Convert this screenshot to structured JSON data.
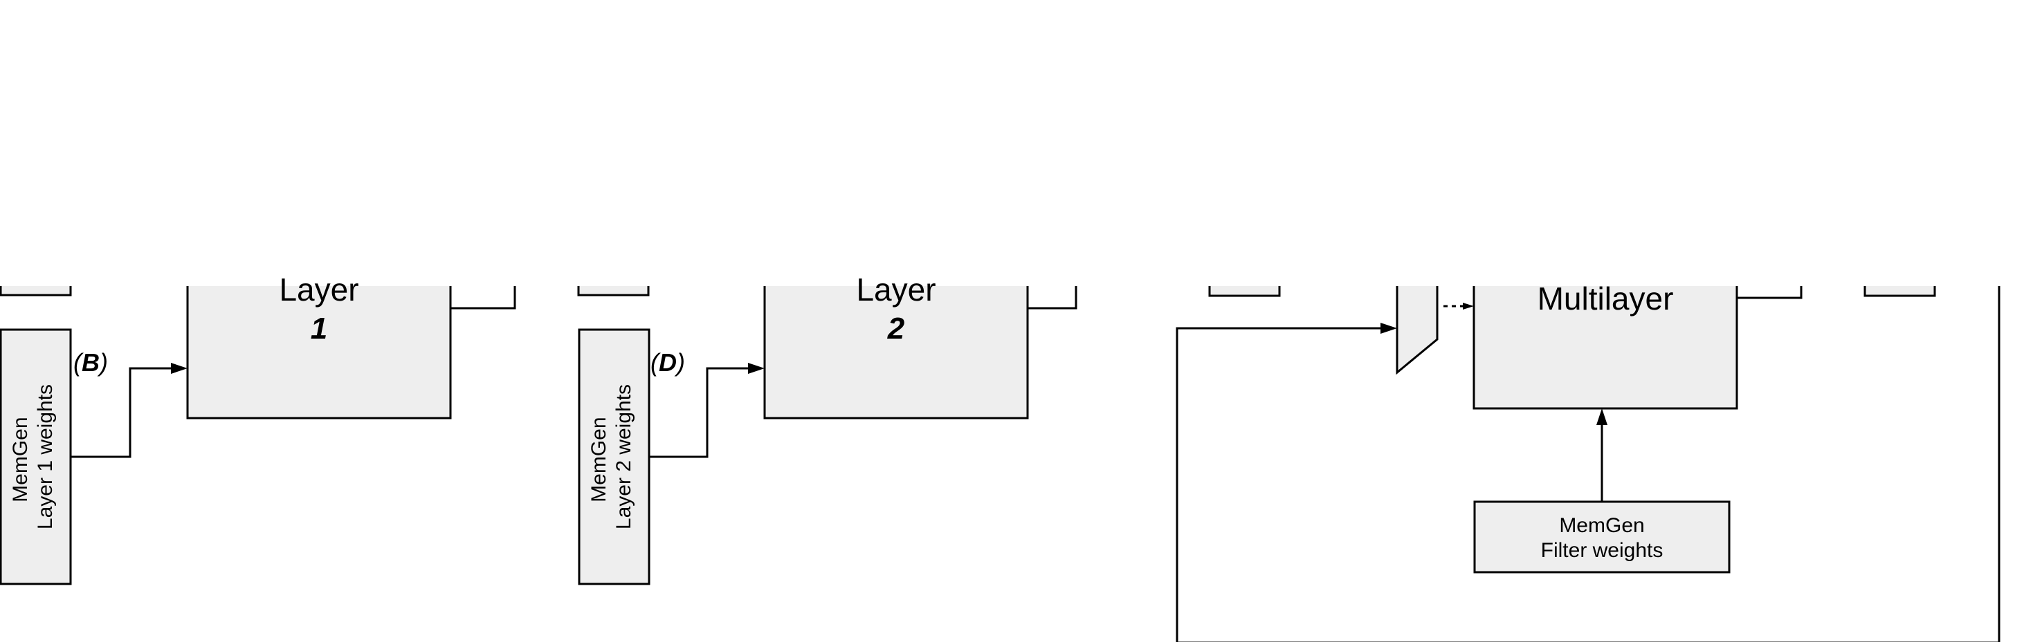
{
  "block1": {
    "layer_title": "Layer",
    "layer_number": "1",
    "memgen_line1": "MemGen",
    "memgen_line2": "Layer 1 weights",
    "tag_open": "(",
    "tag_letter": "B",
    "tag_close": ")"
  },
  "block2": {
    "layer_title": "Layer",
    "layer_number": "2",
    "memgen_line1": "MemGen",
    "memgen_line2": "Layer 2 weights",
    "tag_open": "(",
    "tag_letter": "D",
    "tag_close": ")"
  },
  "block3": {
    "multilayer_title": "Multilayer",
    "memgen_line1": "MemGen",
    "memgen_line2": "Filter weights"
  },
  "colors": {
    "box_fill": "#eeeeee",
    "stroke": "#000000",
    "background": "#ffffff"
  }
}
